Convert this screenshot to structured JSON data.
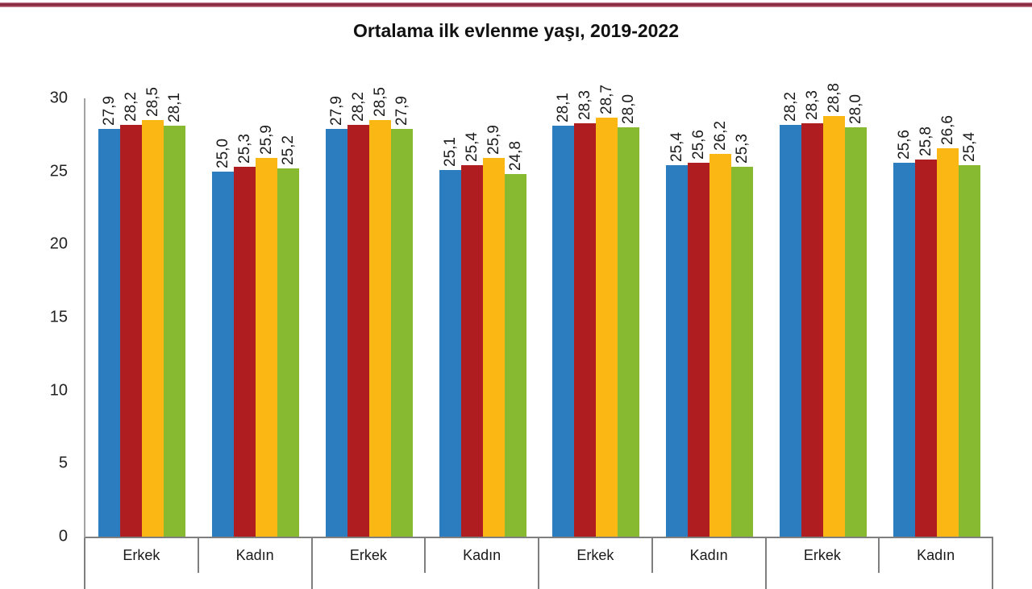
{
  "page": {
    "top_line_color": "#8a2a3e",
    "background": "#ffffff"
  },
  "chart_data": {
    "type": "bar",
    "title": "Ortalama ilk evlenme yaşı, 2019-2022",
    "xlabel": "",
    "ylabel": "",
    "ylim": [
      0,
      30
    ],
    "yticks": [
      "0",
      "5",
      "10",
      "15",
      "20",
      "25",
      "30"
    ],
    "grid": false,
    "legend_position": "none-visible",
    "decimal_separator": ",",
    "series_colors": [
      "#2c7cc0",
      "#b01d21",
      "#fbb713",
      "#87ba31"
    ],
    "series_count": 4,
    "groups": [
      {
        "subgroups": [
          {
            "label": "Erkek",
            "values": [
              27.9,
              28.2,
              28.5,
              28.1
            ],
            "value_labels": [
              "27,9",
              "28,2",
              "28,5",
              "28,1"
            ]
          },
          {
            "label": "Kadın",
            "values": [
              25.0,
              25.3,
              25.9,
              25.2
            ],
            "value_labels": [
              "25,0",
              "25,3",
              "25,9",
              "25,2"
            ]
          }
        ]
      },
      {
        "subgroups": [
          {
            "label": "Erkek",
            "values": [
              27.9,
              28.2,
              28.5,
              27.9
            ],
            "value_labels": [
              "27,9",
              "28,2",
              "28,5",
              "27,9"
            ]
          },
          {
            "label": "Kadın",
            "values": [
              25.1,
              25.4,
              25.9,
              24.8
            ],
            "value_labels": [
              "25,1",
              "25,4",
              "25,9",
              "24,8"
            ]
          }
        ]
      },
      {
        "subgroups": [
          {
            "label": "Erkek",
            "values": [
              28.1,
              28.3,
              28.7,
              28.0
            ],
            "value_labels": [
              "28,1",
              "28,3",
              "28,7",
              "28,0"
            ]
          },
          {
            "label": "Kadın",
            "values": [
              25.4,
              25.6,
              26.2,
              25.3
            ],
            "value_labels": [
              "25,4",
              "25,6",
              "26,2",
              "25,3"
            ]
          }
        ]
      },
      {
        "subgroups": [
          {
            "label": "Erkek",
            "values": [
              28.2,
              28.3,
              28.8,
              28.0
            ],
            "value_labels": [
              "28,2",
              "28,3",
              "28,8",
              "28,0"
            ]
          },
          {
            "label": "Kadın",
            "values": [
              25.6,
              25.8,
              26.6,
              25.4
            ],
            "value_labels": [
              "25,6",
              "25,8",
              "26,6",
              "25,4"
            ]
          }
        ]
      }
    ]
  }
}
